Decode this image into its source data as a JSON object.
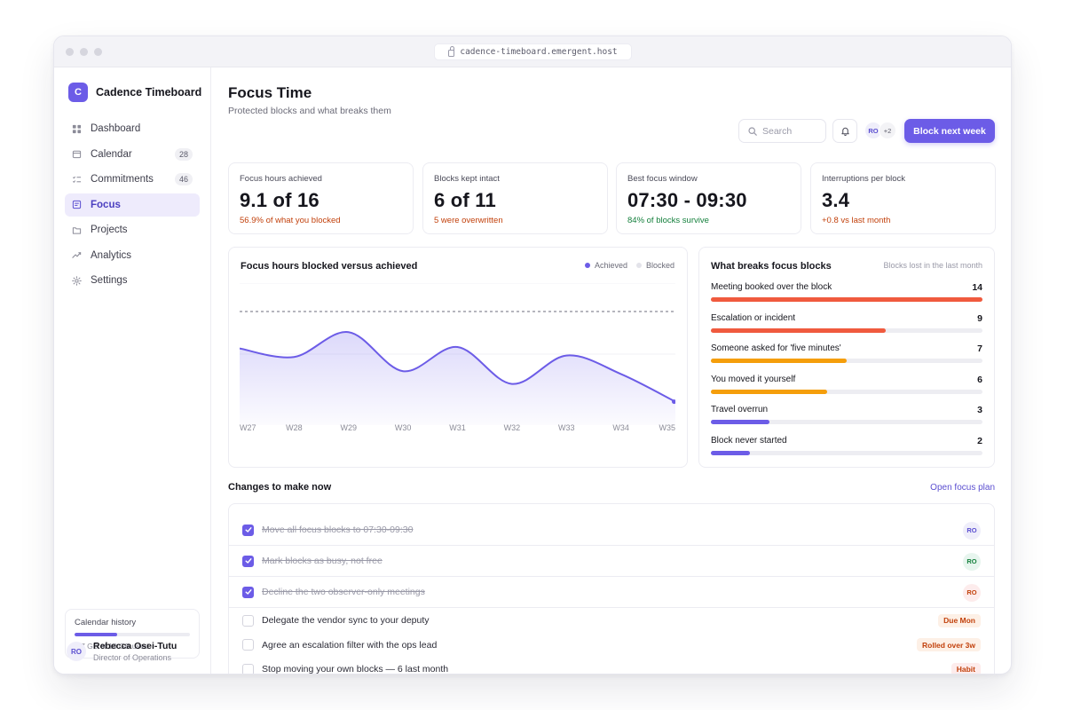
{
  "browser": {
    "url": "cadence-timeboard.emergent.host"
  },
  "sidebar": {
    "logo_letter": "C",
    "app_name": "Cadence Timeboard",
    "items": [
      {
        "label": "Dashboard",
        "icon": "grid-icon",
        "badge": ""
      },
      {
        "label": "Calendar",
        "icon": "calendar-icon",
        "badge": "28"
      },
      {
        "label": "Commitments",
        "icon": "checklist-icon",
        "badge": "46"
      },
      {
        "label": "Focus",
        "icon": "note-icon",
        "badge": "",
        "active": true
      },
      {
        "label": "Projects",
        "icon": "folder-icon",
        "badge": ""
      },
      {
        "label": "Analytics",
        "icon": "trend-icon",
        "badge": ""
      },
      {
        "label": "Settings",
        "icon": "gear-icon",
        "badge": ""
      }
    ],
    "storage": {
      "title": "Calendar history",
      "used_text": "3.7 GB of 10 GB used",
      "used_fraction": 0.37
    },
    "user": {
      "initials": "RO",
      "name": "Rebecca Osei-Tutu",
      "role": "Director of Operations"
    }
  },
  "header": {
    "title": "Focus Time",
    "subtitle": "Protected blocks and what breaks them",
    "search_placeholder": "Search",
    "avatar_initials": "RO",
    "avatar_more": "+2",
    "primary_button": "Block next week"
  },
  "kpis": [
    {
      "label": "Focus hours achieved",
      "value": "9.1 of 16",
      "note": "56.9% of what you blocked",
      "tone": "neg"
    },
    {
      "label": "Blocks kept intact",
      "value": "6 of 11",
      "note": "5 were overwritten",
      "tone": "neg"
    },
    {
      "label": "Best focus window",
      "value": "07:30 - 09:30",
      "note": "84% of blocks survive",
      "tone": "pos"
    },
    {
      "label": "Interruptions per block",
      "value": "3.4",
      "note": "+0.8 vs last month",
      "tone": "neg"
    }
  ],
  "chart_data": {
    "type": "area",
    "title": "Focus hours blocked versus achieved",
    "categories": [
      "W27",
      "W28",
      "W29",
      "W30",
      "W31",
      "W32",
      "W33",
      "W34",
      "W35"
    ],
    "series": [
      {
        "name": "Achieved",
        "values": [
          10.8,
          9.6,
          13.1,
          7.6,
          11.0,
          5.8,
          9.8,
          7.2,
          3.3
        ],
        "color": "#6c5ce7"
      },
      {
        "name": "Blocked",
        "values": [
          16,
          16,
          16,
          16,
          16,
          16,
          16,
          16,
          16
        ],
        "color": "#e3e3ea"
      }
    ],
    "ylim": [
      0,
      20
    ],
    "grid": true,
    "legend": "top-right"
  },
  "breaks": {
    "title": "What breaks focus blocks",
    "subtitle": "Blocks lost in the last month",
    "max": 14,
    "items": [
      {
        "label": "Meeting booked over the block",
        "count": "14",
        "value": 14,
        "color": "#f05a3e"
      },
      {
        "label": "Escalation or incident",
        "count": "9",
        "value": 9,
        "color": "#f05a3e"
      },
      {
        "label": "Someone asked for 'five minutes'",
        "count": "7",
        "value": 7,
        "color": "#f59e0b"
      },
      {
        "label": "You moved it yourself",
        "count": "6",
        "value": 6,
        "color": "#f59e0b"
      },
      {
        "label": "Travel overrun",
        "count": "3",
        "value": 3,
        "color": "#6c5ce7"
      },
      {
        "label": "Block never started",
        "count": "2",
        "value": 2,
        "color": "#6c5ce7"
      }
    ]
  },
  "changes": {
    "title": "Changes to make now",
    "link": "Open focus plan",
    "items": [
      {
        "text": "Move all focus blocks to 07:30-09:30",
        "done": true,
        "avatar": "RO",
        "avatar_bg": "#efeefa",
        "avatar_fg": "#5b4fd0"
      },
      {
        "text": "Mark blocks as busy, not free",
        "done": true,
        "avatar": "RO",
        "avatar_bg": "#e7f5ee",
        "avatar_fg": "#15803d"
      },
      {
        "text": "Decline the two observer-only meetings",
        "done": true,
        "avatar": "RO",
        "avatar_bg": "#fdecec",
        "avatar_fg": "#c2410c"
      },
      {
        "text": "Delegate the vendor sync to your deputy",
        "done": false,
        "tag": "Due Mon",
        "tag_bg": "#fdf0e6",
        "tag_fg": "#c2410c"
      },
      {
        "text": "Agree an escalation filter with the ops lead",
        "done": false,
        "tag": "Rolled over 3w",
        "tag_bg": "#fdf0e6",
        "tag_fg": "#c2410c"
      },
      {
        "text": "Stop moving your own blocks — 6 last month",
        "done": false,
        "tag": "Habit",
        "tag_bg": "#fdecec",
        "tag_fg": "#c2410c"
      }
    ]
  }
}
